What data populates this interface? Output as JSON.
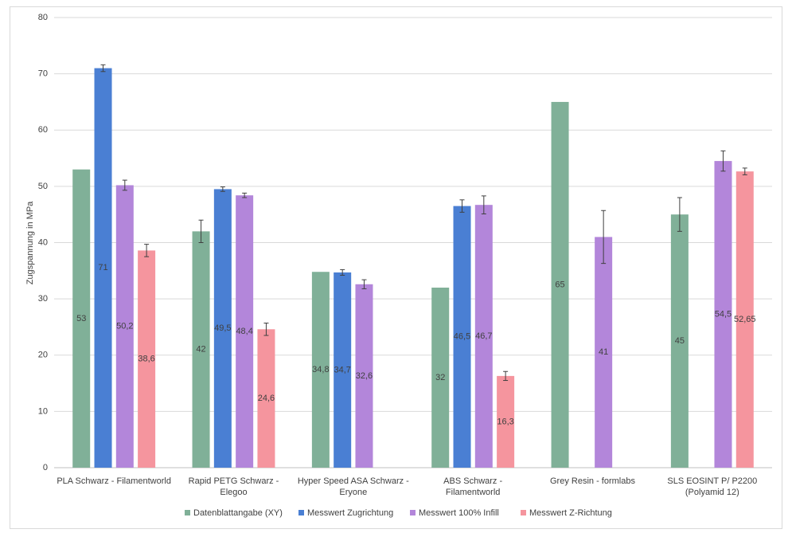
{
  "chart_data": {
    "type": "bar",
    "y_label": "Zugspannung in MPa",
    "categories": [
      "PLA Schwarz - Filamentworld",
      "Rapid PETG Schwarz - Elegoo",
      "Hyper Speed ASA Schwarz - Eryone",
      "ABS Schwarz - Filamentworld",
      "Grey Resin - formlabs",
      "SLS EOSINT P/ P2200 (Polyamid 12)"
    ],
    "series": [
      {
        "name": "Datenblattangabe (XY)",
        "color": "#80b098",
        "values": [
          53,
          42,
          34.8,
          32,
          65,
          45
        ],
        "value_labels": [
          "53",
          "42",
          "34,8",
          "32",
          "65",
          "45"
        ],
        "errors": [
          null,
          2,
          null,
          null,
          null,
          3
        ]
      },
      {
        "name": "Messwert Zugrichtung",
        "color": "#4a7fd3",
        "values": [
          71,
          49.5,
          34.7,
          46.5,
          null,
          null
        ],
        "value_labels": [
          "71",
          "49,5",
          "34,7",
          "46,5",
          null,
          null
        ],
        "errors": [
          0.6,
          0.4,
          0.5,
          1.1,
          null,
          null
        ]
      },
      {
        "name": "Messwert 100% Infill",
        "color": "#b386da",
        "values": [
          50.2,
          48.4,
          32.6,
          46.7,
          41,
          54.5
        ],
        "value_labels": [
          "50,2",
          "48,4",
          "32,6",
          "46,7",
          "41",
          "54,5"
        ],
        "errors": [
          0.9,
          0.4,
          0.8,
          1.6,
          4.7,
          1.8
        ]
      },
      {
        "name": "Messwert Z-Richtung",
        "color": "#f5959e",
        "values": [
          38.6,
          24.6,
          null,
          16.3,
          null,
          52.65
        ],
        "value_labels": [
          "38,6",
          "24,6",
          null,
          "16,3",
          null,
          "52,65"
        ],
        "errors": [
          1.1,
          1.1,
          null,
          0.8,
          null,
          0.6
        ]
      }
    ],
    "ylim": [
      0,
      80
    ],
    "yticks": [
      0,
      10,
      20,
      30,
      40,
      50,
      60,
      70,
      80
    ],
    "grid": true,
    "legend": "bottom"
  }
}
